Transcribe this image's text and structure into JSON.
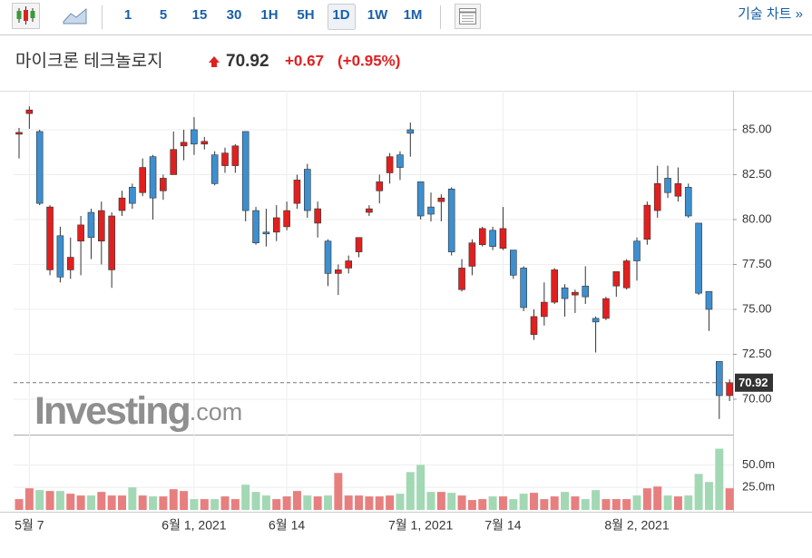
{
  "toolbar": {
    "intervals": [
      "1",
      "5",
      "15",
      "30",
      "1H",
      "5H",
      "1D",
      "1W",
      "1M"
    ],
    "selected_interval_index": 6,
    "tech_chart_link": "기술 차트 »"
  },
  "header": {
    "name": "마이크론 테크놀로지",
    "price": "70.92",
    "change": "+0.67",
    "change_pct": "(+0.95%)"
  },
  "chart_data": {
    "type": "candlestick",
    "categories": [
      null,
      "5월 7",
      null,
      null,
      null,
      null,
      null,
      null,
      null,
      null,
      null,
      null,
      null,
      null,
      null,
      null,
      null,
      "6월 1, 2021",
      null,
      null,
      null,
      null,
      null,
      null,
      null,
      null,
      "6월 14",
      null,
      null,
      null,
      null,
      null,
      null,
      null,
      null,
      null,
      null,
      null,
      null,
      "7월 1, 2021",
      null,
      null,
      null,
      null,
      null,
      null,
      null,
      "7월 14",
      null,
      null,
      null,
      null,
      null,
      null,
      null,
      null,
      null,
      null,
      null,
      null,
      "8월 2, 2021",
      null,
      null,
      null,
      null,
      null,
      null,
      null,
      null,
      null
    ],
    "open": [
      84.75,
      85.9,
      84.9,
      77.2,
      79.1,
      77.2,
      78.8,
      80.4,
      78.8,
      77.2,
      80.5,
      81.8,
      81.5,
      83.5,
      81.6,
      82.5,
      84.1,
      85.0,
      84.2,
      83.6,
      83.0,
      83.0,
      84.9,
      80.5,
      79.3,
      79.3,
      79.6,
      80.9,
      82.8,
      79.8,
      78.8,
      77.0,
      77.3,
      78.2,
      80.4,
      81.6,
      82.6,
      83.6,
      85.0,
      82.1,
      80.7,
      81.0,
      81.7,
      76.1,
      77.4,
      78.6,
      79.4,
      78.4,
      78.3,
      77.3,
      73.6,
      74.6,
      75.4,
      76.2,
      75.8,
      76.3,
      74.5,
      74.5,
      76.3,
      76.2,
      78.8,
      78.9,
      80.5,
      82.3,
      81.3,
      81.8,
      79.8,
      76.0,
      72.1,
      70.2
    ],
    "high": [
      85.1,
      86.3,
      85.0,
      80.8,
      79.6,
      79.0,
      80.2,
      80.6,
      81.0,
      80.4,
      81.6,
      82.0,
      83.4,
      83.6,
      82.5,
      84.9,
      85.0,
      85.7,
      84.6,
      83.8,
      84.0,
      84.2,
      84.9,
      80.7,
      80.6,
      80.8,
      81.0,
      82.5,
      83.1,
      81.0,
      78.9,
      77.5,
      78.0,
      79.0,
      80.8,
      82.5,
      83.7,
      83.8,
      85.4,
      82.1,
      81.5,
      81.4,
      81.8,
      77.8,
      78.9,
      79.6,
      79.6,
      80.7,
      78.3,
      77.4,
      75.0,
      76.5,
      77.3,
      76.4,
      76.1,
      77.4,
      74.6,
      75.7,
      77.1,
      77.8,
      79.0,
      81.0,
      83.0,
      83.0,
      82.9,
      82.0,
      79.8,
      76.0,
      72.1,
      71.1
    ],
    "low": [
      83.4,
      85.05,
      80.8,
      76.9,
      76.5,
      76.7,
      76.9,
      77.8,
      77.5,
      76.2,
      80.2,
      80.6,
      81.3,
      80.0,
      81.1,
      82.5,
      83.3,
      83.6,
      83.9,
      81.9,
      82.6,
      82.6,
      79.9,
      78.6,
      78.5,
      78.8,
      79.4,
      80.6,
      80.1,
      79.0,
      76.3,
      75.8,
      77.0,
      77.9,
      80.2,
      80.9,
      82.0,
      82.2,
      83.5,
      80.0,
      79.9,
      79.9,
      78.0,
      76.0,
      76.9,
      78.5,
      78.3,
      78.3,
      76.7,
      74.9,
      73.3,
      74.1,
      75.3,
      74.6,
      74.8,
      75.3,
      72.6,
      74.4,
      75.7,
      76.1,
      76.6,
      78.6,
      80.1,
      81.2,
      81.0,
      80.1,
      75.8,
      73.8,
      68.9,
      69.9
    ],
    "close": [
      84.85,
      86.1,
      80.9,
      80.7,
      76.8,
      77.9,
      79.7,
      79.0,
      80.5,
      80.2,
      81.2,
      80.9,
      82.9,
      81.2,
      82.3,
      83.9,
      84.3,
      84.2,
      84.35,
      82.0,
      83.7,
      84.1,
      80.5,
      78.7,
      79.2,
      80.1,
      80.5,
      82.2,
      80.5,
      80.6,
      77.0,
      77.2,
      77.7,
      79.0,
      80.6,
      82.1,
      83.5,
      82.9,
      84.8,
      80.2,
      80.3,
      81.2,
      78.2,
      77.3,
      78.7,
      79.5,
      78.5,
      79.5,
      76.9,
      75.1,
      74.6,
      75.4,
      77.2,
      75.6,
      75.95,
      75.7,
      74.3,
      75.6,
      77.1,
      77.7,
      77.7,
      80.8,
      82.0,
      81.5,
      82.0,
      80.2,
      75.9,
      75.0,
      70.2,
      70.92
    ],
    "up_color": "#e0201f",
    "down_color": "#3d8fcf",
    "ylim": [
      68.08,
      87.17
    ],
    "yticks": [
      {
        "value": 85,
        "label": "85.00"
      },
      {
        "value": 82.5,
        "label": "82.50"
      },
      {
        "value": 80,
        "label": "80.00"
      },
      {
        "value": 77.5,
        "label": "77.50"
      },
      {
        "value": 75,
        "label": "75.00"
      },
      {
        "value": 72.5,
        "label": "72.50"
      },
      {
        "value": 70,
        "label": "70.00"
      }
    ],
    "last_price": 70.92,
    "grid": true,
    "volume": {
      "values": [
        12,
        24,
        22,
        21,
        21,
        18,
        16,
        16,
        20,
        16,
        16,
        25,
        16,
        15,
        15,
        23,
        21,
        12,
        12,
        12,
        15,
        12,
        28,
        20,
        16,
        12,
        15,
        21,
        16,
        15,
        16,
        41,
        16,
        16,
        15,
        15,
        16,
        18,
        42,
        50,
        20,
        20,
        19,
        16,
        11,
        12,
        15,
        15,
        12,
        18,
        19,
        12,
        15,
        20,
        15,
        12,
        22,
        12,
        12,
        12,
        16,
        24,
        26,
        16,
        15,
        16,
        40,
        31,
        68,
        24
      ],
      "up_color": "#e77f7f",
      "down_color": "#a3d8b4",
      "ylim": [
        0,
        80.6
      ],
      "yticks": [
        {
          "value": 50,
          "label": "50.0m"
        },
        {
          "value": 25,
          "label": "25.0m"
        }
      ]
    },
    "watermark": "Investing",
    "watermark_suffix": ".com"
  }
}
